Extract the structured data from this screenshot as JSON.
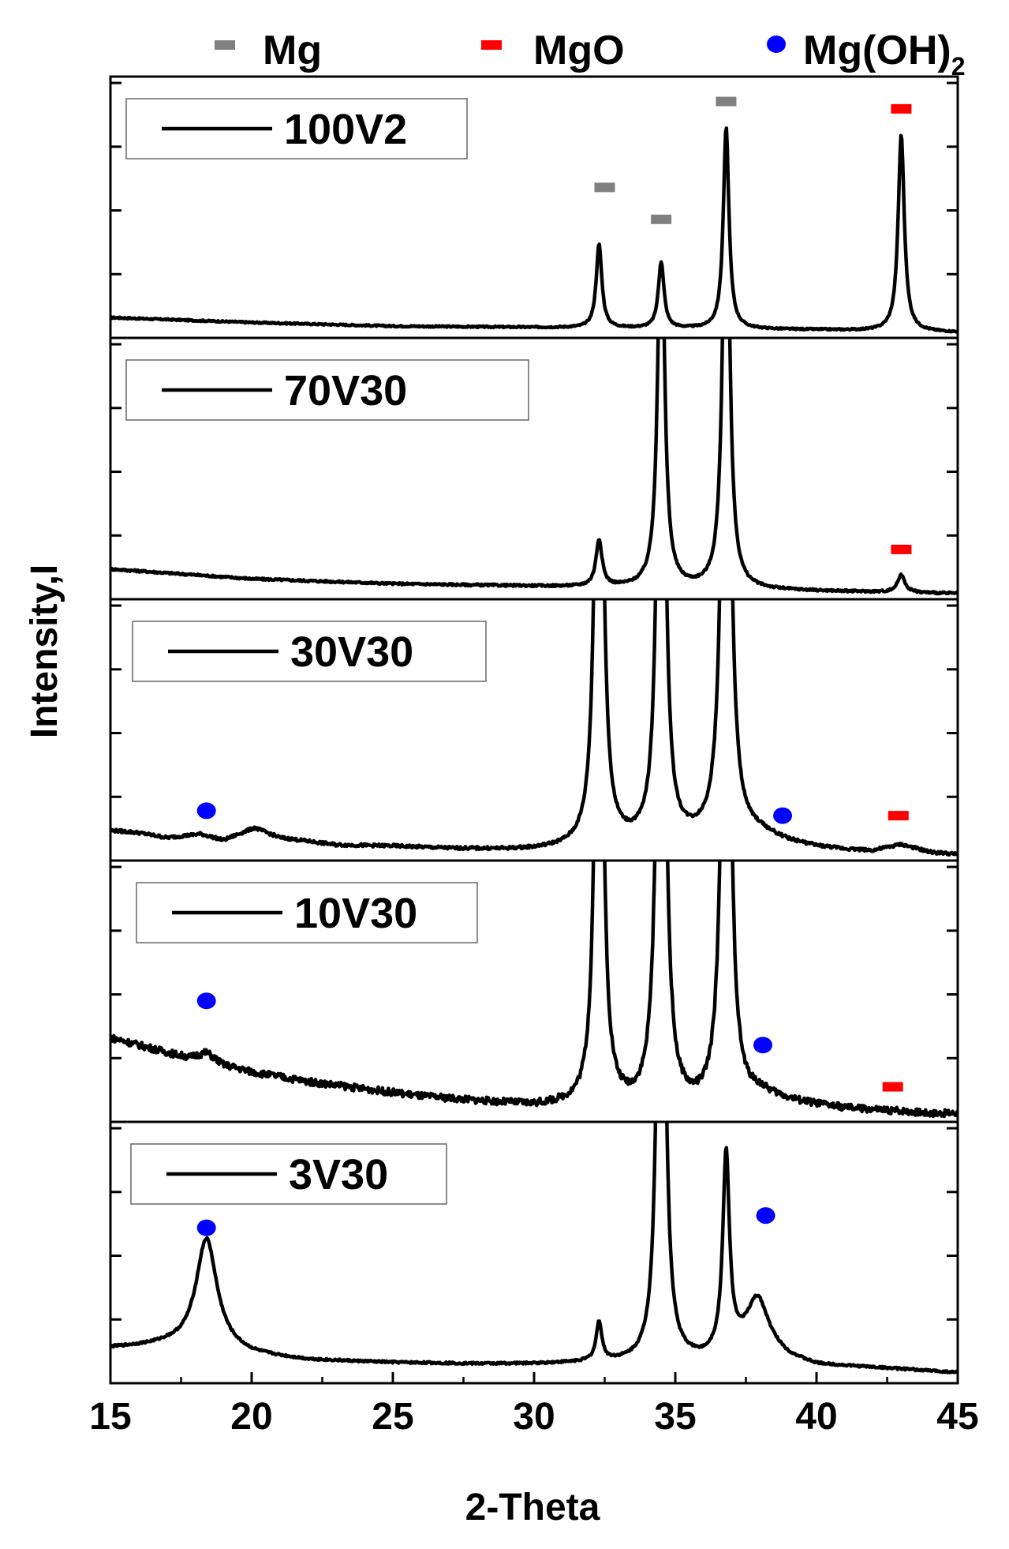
{
  "chart_data": {
    "type": "line",
    "title": "",
    "xlabel": "2-Theta",
    "ylabel": "Intensity,I",
    "xlim": [
      15,
      45
    ],
    "x_ticks": [
      "15",
      "20",
      "25",
      "30",
      "35",
      "40",
      "45"
    ],
    "colors": {
      "Mg": "#808080",
      "MgO": "#ff0000",
      "MgOH2": "#0000ff",
      "line": "#000000"
    },
    "phase_legend": [
      {
        "key": "Mg",
        "label": "Mg",
        "marker": "rect",
        "color": "#808080"
      },
      {
        "key": "MgO",
        "label": "MgO",
        "marker": "rect",
        "color": "#ff0000"
      },
      {
        "key": "MgOH2",
        "label": "Mg(OH)",
        "subscript": "2",
        "marker": "circle",
        "color": "#0000ff"
      }
    ],
    "panels": [
      {
        "name": "100V2",
        "baseline": {
          "x": [
            15,
            20,
            25,
            30,
            35,
            40,
            45
          ],
          "y": [
            0.07,
            0.05,
            0.035,
            0.03,
            0.025,
            0.02,
            0.01
          ]
        },
        "peaks": [
          {
            "x": 32.3,
            "h": 0.34,
            "w": 0.12
          },
          {
            "x": 34.5,
            "h": 0.27,
            "w": 0.12
          },
          {
            "x": 36.8,
            "h": 0.82,
            "w": 0.12
          },
          {
            "x": 43.0,
            "h": 0.8,
            "w": 0.13
          }
        ],
        "noise": 0.003,
        "markers": [
          {
            "phase": "Mg",
            "x": 32.5,
            "y": 0.6
          },
          {
            "phase": "Mg",
            "x": 34.5,
            "y": 0.47
          },
          {
            "phase": "Mg",
            "x": 36.8,
            "y": 0.95
          },
          {
            "phase": "MgO",
            "x": 43.0,
            "y": 0.92
          }
        ]
      },
      {
        "name": "70V30",
        "baseline": {
          "x": [
            15,
            20,
            25,
            30,
            35,
            40,
            45
          ],
          "y": [
            0.11,
            0.07,
            0.05,
            0.04,
            0.03,
            0.02,
            0.01
          ]
        },
        "peaks": [
          {
            "x": 32.3,
            "h": 0.19,
            "w": 0.13
          },
          {
            "x": 34.5,
            "h": 1.6,
            "w": 0.14
          },
          {
            "x": 36.8,
            "h": 1.9,
            "w": 0.14
          },
          {
            "x": 43.0,
            "h": 0.07,
            "w": 0.16
          }
        ],
        "noise": 0.004,
        "markers": [
          {
            "phase": "MgO",
            "x": 43.0,
            "y": 0.19
          }
        ]
      },
      {
        "name": "30V30",
        "baseline": {
          "x": [
            15,
            16,
            17,
            18.2,
            19,
            20.1,
            21,
            23,
            25,
            27,
            29,
            30,
            31,
            33,
            35,
            37,
            38,
            39,
            40,
            41,
            42,
            43,
            44,
            45
          ],
          "y": [
            0.11,
            0.1,
            0.08,
            0.095,
            0.07,
            0.12,
            0.08,
            0.05,
            0.045,
            0.035,
            0.03,
            0.03,
            0.035,
            0.05,
            0.06,
            0.08,
            0.09,
            0.06,
            0.04,
            0.03,
            0.025,
            0.05,
            0.02,
            0.01
          ]
        },
        "peaks": [
          {
            "x": 32.3,
            "h": 3.0,
            "w": 0.14
          },
          {
            "x": 34.5,
            "h": 3.0,
            "w": 0.14
          },
          {
            "x": 36.8,
            "h": 3.0,
            "w": 0.16
          }
        ],
        "noise": 0.006,
        "markers": [
          {
            "phase": "MgOH2",
            "x": 18.4,
            "y": 0.19
          },
          {
            "phase": "MgOH2",
            "x": 38.8,
            "y": 0.17
          },
          {
            "phase": "MgO",
            "x": 42.9,
            "y": 0.17
          }
        ]
      },
      {
        "name": "10V30",
        "baseline": {
          "x": [
            15,
            16,
            17,
            17.8,
            18.4,
            19,
            20,
            22,
            24,
            26,
            28,
            30,
            31,
            33,
            35,
            37,
            38,
            38.5,
            39.5,
            41,
            42.5,
            43,
            44,
            45
          ],
          "y": [
            0.33,
            0.3,
            0.27,
            0.25,
            0.27,
            0.22,
            0.19,
            0.15,
            0.12,
            0.09,
            0.07,
            0.05,
            0.05,
            0.04,
            0.03,
            0.04,
            0.09,
            0.08,
            0.06,
            0.04,
            0.03,
            0.03,
            0.02,
            0.02
          ]
        },
        "peaks": [
          {
            "x": 32.3,
            "h": 3.0,
            "w": 0.14
          },
          {
            "x": 34.5,
            "h": 3.0,
            "w": 0.16
          },
          {
            "x": 36.8,
            "h": 3.0,
            "w": 0.16
          }
        ],
        "noise": 0.014,
        "markers": [
          {
            "phase": "MgOH2",
            "x": 18.4,
            "y": 0.48
          },
          {
            "phase": "MgOH2",
            "x": 38.1,
            "y": 0.3
          },
          {
            "phase": "MgO",
            "x": 42.7,
            "y": 0.13
          }
        ]
      },
      {
        "name": "3V30",
        "baseline": {
          "x": [
            15,
            17,
            19,
            20,
            22,
            25,
            28,
            30,
            32,
            34,
            36,
            37,
            38,
            39,
            40,
            42,
            45
          ],
          "y": [
            0.13,
            0.14,
            0.12,
            0.1,
            0.08,
            0.07,
            0.065,
            0.065,
            0.07,
            0.07,
            0.08,
            0.12,
            0.15,
            0.09,
            0.06,
            0.05,
            0.03
          ]
        },
        "peaks": [
          {
            "x": 18.4,
            "h": 0.45,
            "w": 0.45
          },
          {
            "x": 32.3,
            "h": 0.16,
            "w": 0.12
          },
          {
            "x": 34.5,
            "h": 3.0,
            "w": 0.14
          },
          {
            "x": 36.8,
            "h": 0.8,
            "w": 0.14
          },
          {
            "x": 37.9,
            "h": 0.18,
            "w": 0.45
          }
        ],
        "noise": 0.004,
        "markers": [
          {
            "phase": "MgOH2",
            "x": 18.4,
            "y": 0.62
          },
          {
            "phase": "MgOH2",
            "x": 38.2,
            "y": 0.67
          }
        ]
      }
    ]
  }
}
